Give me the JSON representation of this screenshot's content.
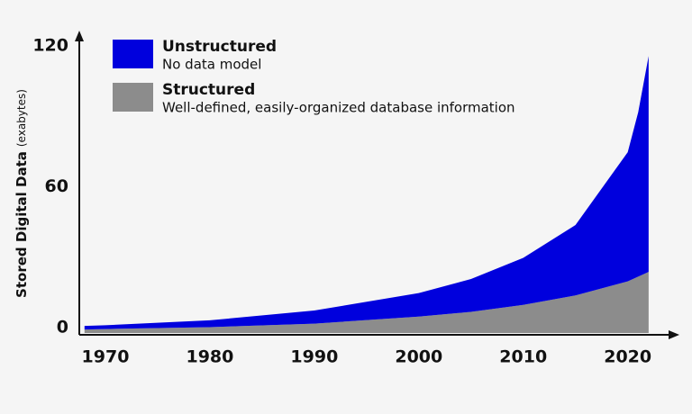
{
  "chart_data": {
    "type": "stacked-area",
    "y_label": "Stored Digital Data",
    "y_label_unit": "(exabytes)",
    "x": [
      1968,
      1970,
      1980,
      1990,
      2000,
      2005,
      2010,
      2015,
      2020,
      2021,
      2022
    ],
    "series": [
      {
        "name": "Structured",
        "description": "Well-defined, easily-organized database information",
        "color": "#8c8c8c",
        "values": [
          1.5,
          1.7,
          2.5,
          4,
          7,
          9,
          12,
          16,
          22,
          24,
          26
        ]
      },
      {
        "name": "Unstructured",
        "description": "No data model",
        "color": "#0000dd",
        "values": [
          1.5,
          1.6,
          2.9,
          5.6,
          10,
          14,
          20,
          30,
          55,
          70,
          92
        ]
      }
    ],
    "xlim": [
      1967.5,
      2024.6
    ],
    "xticks": [
      1970,
      1980,
      1990,
      2000,
      2010,
      2020
    ],
    "ylim": [
      0,
      120
    ],
    "yticks": [
      0,
      60,
      120
    ]
  }
}
